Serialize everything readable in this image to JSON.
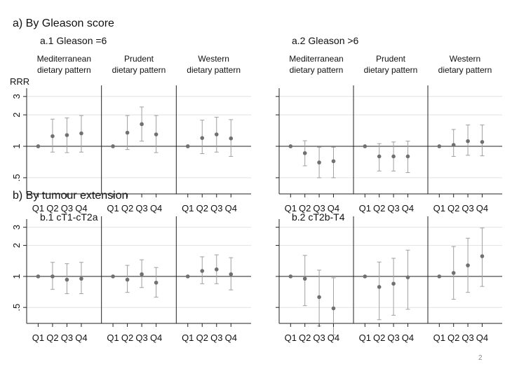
{
  "section_a": "a)   By Gleason score",
  "section_b": "b)   By tumour extension",
  "y_axis_label": "RRR",
  "page_number": "2",
  "x_tick_labels": [
    "Q1",
    "Q2",
    "Q3",
    "Q4"
  ],
  "y_tick_labels": [
    "3",
    "2",
    "1",
    ".5"
  ],
  "pattern_labels": [
    [
      "Mediterranean",
      "dietary pattern"
    ],
    [
      "Prudent",
      "dietary pattern"
    ],
    [
      "Western",
      "dietary pattern"
    ]
  ],
  "colors": {
    "point": "#707070",
    "error_bar": "#a0a0a0",
    "axis": "#222222",
    "gridline": "#e2e2e2"
  },
  "chart_data": [
    {
      "type": "scatter",
      "title": "a.1  Gleason =6",
      "ylabel": "RRR",
      "yscale": "log",
      "ylim": [
        0.35,
        3.6
      ],
      "yticks": [
        3,
        2,
        1,
        0.5
      ],
      "reference_line": 1,
      "categories": [
        "Q1",
        "Q2",
        "Q3",
        "Q4"
      ],
      "series": [
        {
          "name": "Mediterranean dietary pattern",
          "values": [
            1.0,
            1.25,
            1.28,
            1.33
          ],
          "lower": [
            1.0,
            0.88,
            0.87,
            0.88
          ],
          "upper": [
            1.0,
            1.82,
            1.87,
            1.97
          ]
        },
        {
          "name": "Prudent dietary pattern",
          "values": [
            1.0,
            1.35,
            1.63,
            1.3
          ],
          "lower": [
            1.0,
            0.93,
            1.12,
            0.87
          ],
          "upper": [
            1.0,
            1.97,
            2.38,
            1.97
          ]
        },
        {
          "name": "Western dietary pattern",
          "values": [
            1.0,
            1.2,
            1.3,
            1.19
          ],
          "lower": [
            1.0,
            0.85,
            0.88,
            0.8
          ],
          "upper": [
            1.0,
            1.78,
            1.9,
            1.8
          ]
        }
      ]
    },
    {
      "type": "scatter",
      "title": "a.2  Gleason >6",
      "ylabel": "RRR",
      "yscale": "log",
      "ylim": [
        0.35,
        3.6
      ],
      "yticks": [
        3,
        2,
        1,
        0.5
      ],
      "reference_line": 1,
      "categories": [
        "Q1",
        "Q2",
        "Q3",
        "Q4"
      ],
      "series": [
        {
          "name": "Mediterranean dietary pattern",
          "values": [
            1.0,
            0.86,
            0.7,
            0.72
          ],
          "lower": [
            1.0,
            0.65,
            0.5,
            0.5
          ],
          "upper": [
            1.0,
            1.13,
            0.98,
            0.98
          ]
        },
        {
          "name": "Prudent dietary pattern",
          "values": [
            1.0,
            0.8,
            0.8,
            0.8
          ],
          "lower": [
            1.0,
            0.58,
            0.58,
            0.56
          ],
          "upper": [
            1.0,
            1.06,
            1.1,
            1.12
          ]
        },
        {
          "name": "Western dietary pattern",
          "values": [
            1.0,
            1.03,
            1.12,
            1.1
          ],
          "lower": [
            1.0,
            0.8,
            0.82,
            0.81
          ],
          "upper": [
            1.0,
            1.45,
            1.6,
            1.6
          ]
        }
      ]
    },
    {
      "type": "scatter",
      "title": "b.1  cT1-cT2a",
      "ylabel": "RRR",
      "yscale": "log",
      "ylim": [
        0.35,
        3.6
      ],
      "yticks": [
        3,
        2,
        1,
        0.5
      ],
      "reference_line": 1,
      "categories": [
        "Q1",
        "Q2",
        "Q3",
        "Q4"
      ],
      "series": [
        {
          "name": "Mediterranean dietary pattern",
          "values": [
            1.0,
            1.0,
            0.93,
            0.95
          ],
          "lower": [
            1.0,
            0.75,
            0.68,
            0.68
          ],
          "upper": [
            1.0,
            1.37,
            1.33,
            1.37
          ]
        },
        {
          "name": "Prudent dietary pattern",
          "values": [
            1.0,
            0.93,
            1.05,
            0.87
          ],
          "lower": [
            1.0,
            0.7,
            0.78,
            0.63
          ],
          "upper": [
            1.0,
            1.28,
            1.45,
            1.22
          ]
        },
        {
          "name": "Western dietary pattern",
          "values": [
            1.0,
            1.13,
            1.17,
            1.05
          ],
          "lower": [
            1.0,
            0.85,
            0.85,
            0.74
          ],
          "upper": [
            1.0,
            1.55,
            1.62,
            1.52
          ]
        }
      ]
    },
    {
      "type": "scatter",
      "title": "b.2  cT2b-T4",
      "ylabel": "RRR",
      "yscale": "log",
      "ylim": [
        0.35,
        3.6
      ],
      "yticks": [
        3,
        2,
        1,
        0.5
      ],
      "reference_line": 1,
      "categories": [
        "Q1",
        "Q2",
        "Q3",
        "Q4"
      ],
      "series": [
        {
          "name": "Mediterranean dietary pattern",
          "values": [
            1.0,
            0.95,
            0.63,
            0.49
          ],
          "lower": [
            1.0,
            0.52,
            0.33,
            0.27
          ],
          "upper": [
            1.0,
            1.6,
            1.15,
            0.97
          ]
        },
        {
          "name": "Prudent dietary pattern",
          "values": [
            1.0,
            0.79,
            0.85,
            0.98
          ],
          "lower": [
            1.0,
            0.38,
            0.42,
            0.48
          ],
          "upper": [
            1.0,
            1.38,
            1.5,
            1.8
          ]
        },
        {
          "name": "Western dietary pattern",
          "values": [
            1.0,
            1.08,
            1.28,
            1.57
          ],
          "lower": [
            1.0,
            0.6,
            0.7,
            0.8
          ],
          "upper": [
            1.0,
            1.95,
            2.35,
            2.95
          ]
        }
      ]
    }
  ]
}
